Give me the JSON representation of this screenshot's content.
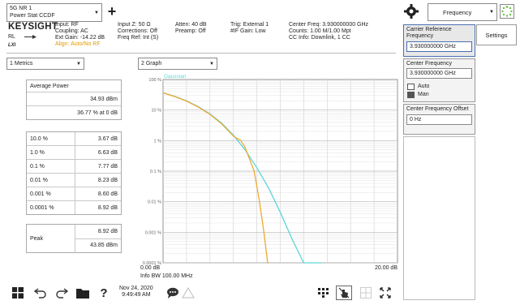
{
  "mode": {
    "line1": "5G NR 1",
    "line2": "Power Stat CCDF"
  },
  "add_label": "+",
  "header_right": {
    "frequency_label": "Frequency"
  },
  "info": {
    "brand": "KEYSIGHT",
    "rl": "RL",
    "lxi": "LXI",
    "col1": [
      "Input: RF",
      "Coupling: AC",
      "Ext Gain: -14.22 dB"
    ],
    "align": "Align: Auto/No RF",
    "col2": [
      "Input Z: 50 Ω",
      "Corrections: Off",
      "Freq Ref: Int (S)"
    ],
    "col3": [
      "Atten: 40 dB",
      "Preamp: Off"
    ],
    "col4": [
      "Trig: External 1",
      "#IF Gain: Low"
    ],
    "col5": [
      "Center Freq: 3.930000000 GHz",
      "Counts: 1.00 M/1.00 Mpt",
      "CC Info: Downlink, 1 CC"
    ]
  },
  "view_left": "1 Metrics",
  "view_right": "2 Graph",
  "metrics": {
    "avg_title": "Average Power",
    "avg_dbm": "34.93 dBm",
    "avg_pct": "36.77 % at 0 dB",
    "rows": [
      {
        "pct": "10.0 %",
        "db": "3.67 dB"
      },
      {
        "pct": "1.0 %",
        "db": "6.63 dB"
      },
      {
        "pct": "0.1 %",
        "db": "7.77 dB"
      },
      {
        "pct": "0.01 %",
        "db": "8.23 dB"
      },
      {
        "pct": "0.001 %",
        "db": "8.60 dB"
      },
      {
        "pct": "0.0001 %",
        "db": "8.92 dB"
      }
    ],
    "peak_label": "Peak",
    "peak_db": "8.92 dB",
    "peak_dbm": "43.85 dBm"
  },
  "graph": {
    "gaussian_label": "Gaussian",
    "y_ticks": [
      "100 %",
      "10 %",
      "1 %",
      "0.1 %",
      "0.01 %",
      "0.001 %",
      "0.0001 %"
    ],
    "x_start": "0.00 dB",
    "x_end": "20.00 dB",
    "info_bw": "Info BW 100.00 MHz"
  },
  "chart_data": {
    "type": "line",
    "xlabel": "",
    "ylabel": "",
    "xlim": [
      0,
      20
    ],
    "ylim_log_percent": [
      0.0001,
      100
    ],
    "series": [
      {
        "name": "Gaussian",
        "color": "#5dd6d6",
        "x": [
          0,
          1,
          2,
          3,
          4,
          5,
          6,
          7,
          8,
          9,
          10,
          11,
          12,
          13,
          13.5
        ],
        "y": [
          36.8,
          28,
          20,
          13,
          7.5,
          3.7,
          1.5,
          0.5,
          0.13,
          0.028,
          0.0045,
          0.0006,
          8e-05,
          1e-05,
          2e-06
        ]
      },
      {
        "color": "#f0a830",
        "x": [
          0,
          1,
          2,
          3,
          4,
          5,
          6,
          6.63,
          7,
          7.77,
          8.23,
          8.6,
          8.92,
          9.0,
          9.0
        ],
        "y": [
          36.77,
          27.5,
          19.5,
          12.6,
          7.2,
          3.5,
          1.4,
          1.0,
          0.6,
          0.1,
          0.01,
          0.001,
          0.0001,
          5e-05,
          2e-06
        ]
      }
    ]
  },
  "side_panel": {
    "settings_label": "Settings",
    "carrier_ref_label": "Carrier Reference Frequency",
    "carrier_ref_value": "3.930000000 GHz",
    "center_freq_label": "Center Frequency",
    "center_freq_value": "3.930000000 GHz",
    "auto_label": "Auto",
    "man_label": "Man",
    "center_offset_label": "Center Frequency Offset",
    "center_offset_value": "0 Hz"
  },
  "taskbar": {
    "date": "Nov 24, 2020",
    "time": "9:49:49 AM"
  },
  "colors": {
    "gaussian": "#5dd6d6",
    "measured": "#f0a830",
    "align": "#e09a00"
  }
}
